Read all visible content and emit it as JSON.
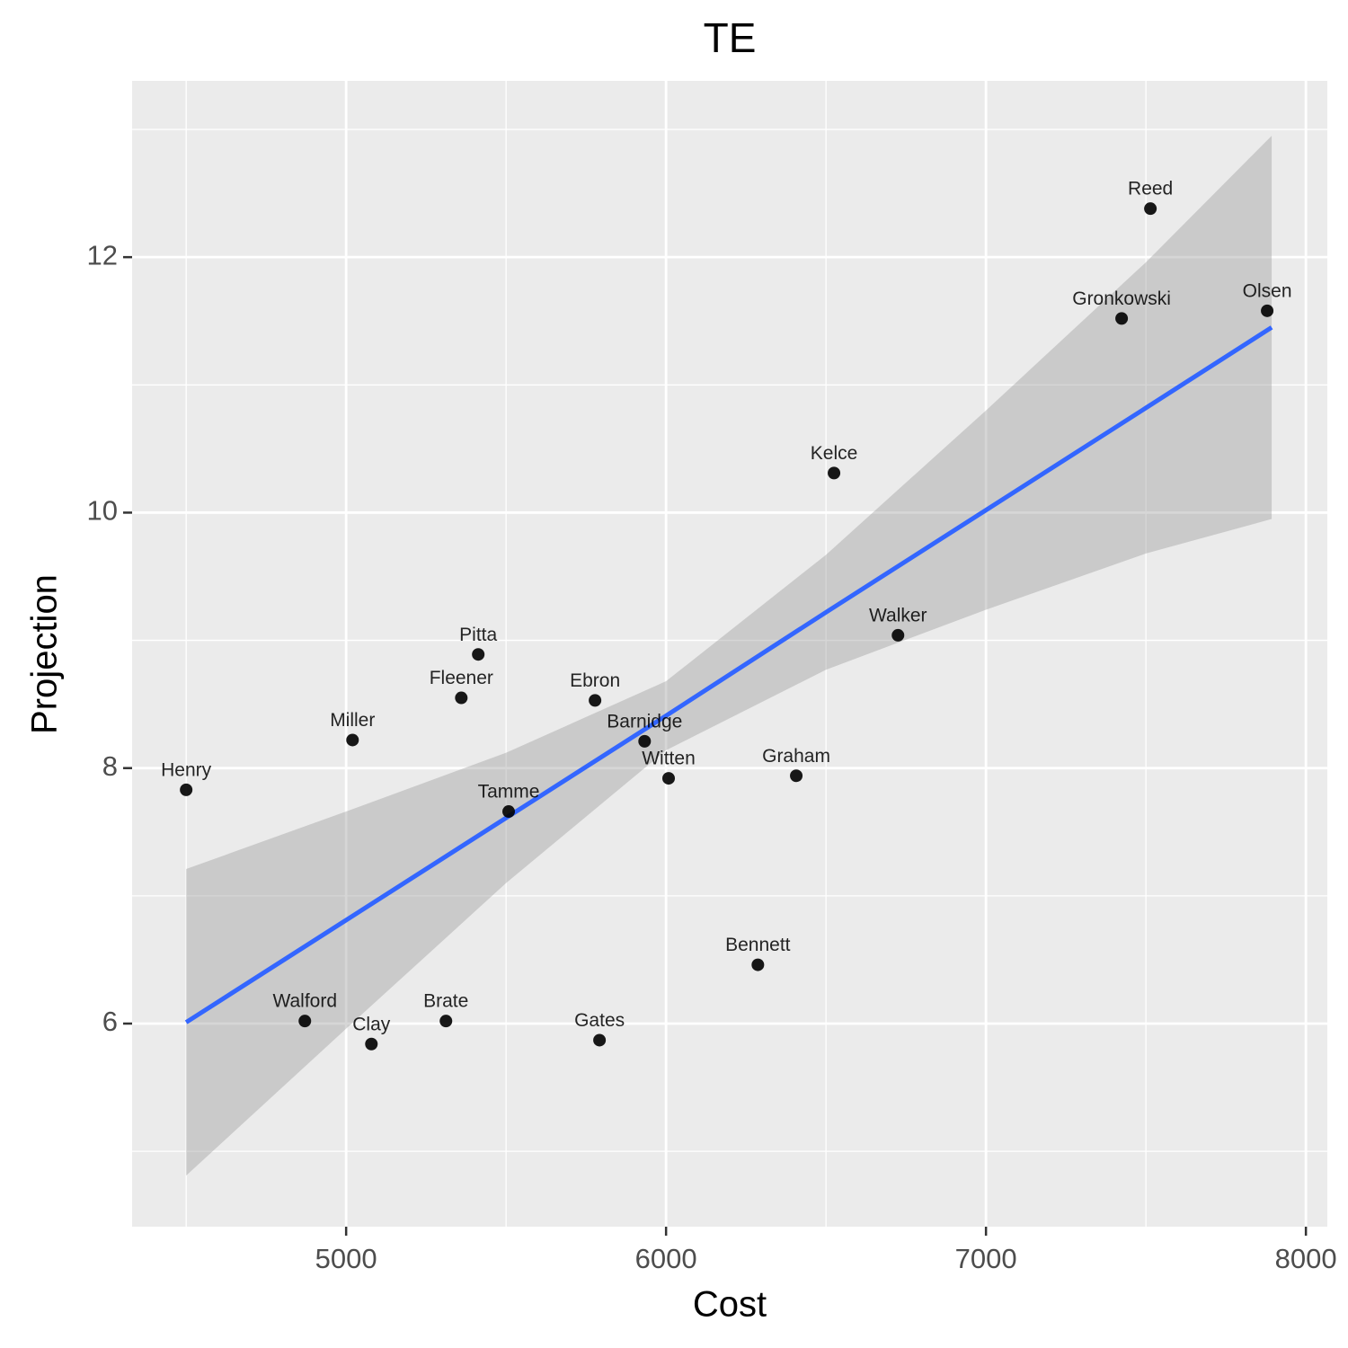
{
  "chart_data": {
    "type": "scatter",
    "title": "TE",
    "x_label": "Cost",
    "y_label": "Projection",
    "xlim": [
      4331,
      8067
    ],
    "ylim": [
      4.41,
      13.38
    ],
    "xticks": [
      5000,
      6000,
      7000,
      8000
    ],
    "yticks": [
      6,
      8,
      10,
      12
    ],
    "x_minor_ticks": [
      4500,
      5500,
      6500,
      7500
    ],
    "y_minor_ticks": [
      5,
      7,
      9,
      11,
      13
    ],
    "grid": true,
    "color": "#000000",
    "points": {
      "labels": [
        "Reed",
        "Gronkowski",
        "Olsen",
        "Kelce",
        "Walker",
        "Pitta",
        "Fleener",
        "Ebron",
        "Miller",
        "Barnidge",
        "Henry",
        "Witten",
        "Graham",
        "Tamme",
        "Bennett",
        "Walford",
        "Brate",
        "Clay",
        "Gates"
      ],
      "x": [
        7514,
        7424,
        7879,
        6525,
        6725,
        5413,
        5360,
        5778,
        5020,
        5933,
        4500,
        6008,
        6407,
        5508,
        6287,
        4871,
        5312,
        5079,
        5792
      ],
      "y": [
        12.38,
        11.52,
        11.58,
        10.31,
        9.04,
        8.89,
        8.55,
        8.53,
        8.22,
        8.21,
        7.83,
        7.92,
        7.94,
        7.66,
        6.46,
        6.02,
        6.02,
        5.84,
        5.87
      ]
    },
    "fit": {
      "color": "#3366ff",
      "band_color": "#999999",
      "x": [
        4500,
        5000,
        5500,
        6000,
        6500,
        7000,
        7500,
        7893
      ],
      "y": [
        6.01,
        6.81,
        7.61,
        8.41,
        9.22,
        10.02,
        10.82,
        11.45
      ],
      "lower": [
        4.81,
        5.96,
        7.1,
        8.14,
        8.77,
        9.24,
        9.68,
        9.95
      ],
      "upper": [
        7.21,
        7.66,
        8.12,
        8.68,
        9.67,
        10.8,
        11.96,
        12.95
      ]
    }
  }
}
